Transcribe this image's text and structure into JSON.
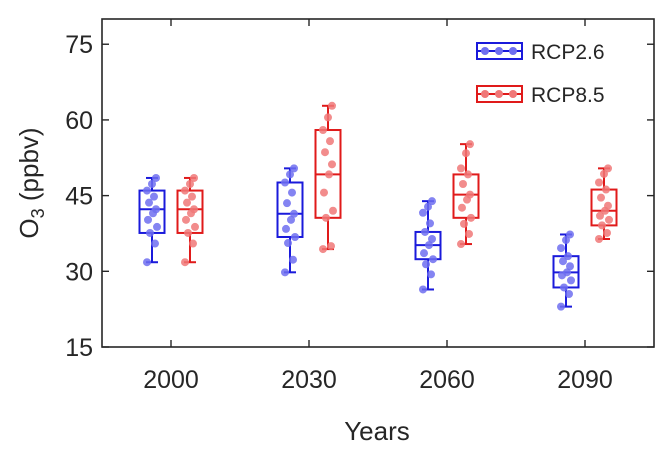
{
  "chart_data": {
    "type": "boxplot",
    "xlabel": "Years",
    "ylabel_main": "O",
    "ylabel_sub": "3",
    "ylabel_unit": " (ppbv)",
    "categories": [
      "2000",
      "2030",
      "2060",
      "2090"
    ],
    "ylim": [
      15,
      80
    ],
    "yticks": [
      15,
      30,
      45,
      60,
      75
    ],
    "grid": false,
    "legend_position": "top-right",
    "series": [
      {
        "name": "RCP2.6",
        "color": "#1a1adb",
        "point_color": "#6e6ef0",
        "boxes": [
          {
            "min": 31.8,
            "q1": 37.6,
            "median": 42.3,
            "q3": 46.0,
            "max": 48.5,
            "points": [
              31.8,
              35.5,
              37.6,
              38.8,
              40.2,
              41.5,
              42.3,
              43.6,
              44.8,
              46.0,
              47.3,
              48.5
            ]
          },
          {
            "min": 29.8,
            "q1": 36.8,
            "median": 41.4,
            "q3": 47.6,
            "max": 50.4,
            "points": [
              29.8,
              32.3,
              35.6,
              36.8,
              38.4,
              40.2,
              41.4,
              43.5,
              45.6,
              47.6,
              49.2,
              50.4
            ]
          },
          {
            "min": 26.4,
            "q1": 32.4,
            "median": 35.2,
            "q3": 37.8,
            "max": 43.9,
            "points": [
              26.4,
              29.4,
              31.4,
              32.4,
              33.6,
              35.2,
              36.4,
              37.8,
              39.5,
              41.6,
              42.8,
              43.9
            ]
          },
          {
            "min": 23.0,
            "q1": 26.8,
            "median": 29.8,
            "q3": 33.0,
            "max": 37.3,
            "points": [
              23.0,
              25.5,
              26.8,
              28.2,
              29.2,
              29.8,
              31.0,
              32.0,
              33.0,
              34.6,
              36.2,
              37.3
            ]
          }
        ]
      },
      {
        "name": "RCP8.5",
        "color": "#e01a1a",
        "point_color": "#f07878",
        "boxes": [
          {
            "min": 31.8,
            "q1": 37.6,
            "median": 42.3,
            "q3": 46.0,
            "max": 48.5,
            "points": [
              31.8,
              35.5,
              37.6,
              38.8,
              40.2,
              41.5,
              42.3,
              43.6,
              44.8,
              46.0,
              47.3,
              48.5
            ]
          },
          {
            "min": 34.4,
            "q1": 40.6,
            "median": 49.2,
            "q3": 58.0,
            "max": 62.8,
            "points": [
              34.4,
              35.0,
              40.6,
              42.0,
              45.6,
              49.2,
              51.2,
              53.6,
              55.8,
              58.0,
              60.5,
              62.8
            ]
          },
          {
            "min": 35.4,
            "q1": 40.6,
            "median": 45.2,
            "q3": 49.2,
            "max": 55.2,
            "points": [
              35.4,
              37.4,
              39.4,
              40.6,
              42.6,
              44.2,
              45.2,
              47.3,
              49.2,
              50.4,
              53.4,
              55.2
            ]
          },
          {
            "min": 36.4,
            "q1": 39.1,
            "median": 42.0,
            "q3": 46.2,
            "max": 50.4,
            "points": [
              36.4,
              37.6,
              39.1,
              40.2,
              41.0,
              42.0,
              43.0,
              44.6,
              46.2,
              47.6,
              49.3,
              50.4
            ]
          }
        ]
      }
    ]
  }
}
